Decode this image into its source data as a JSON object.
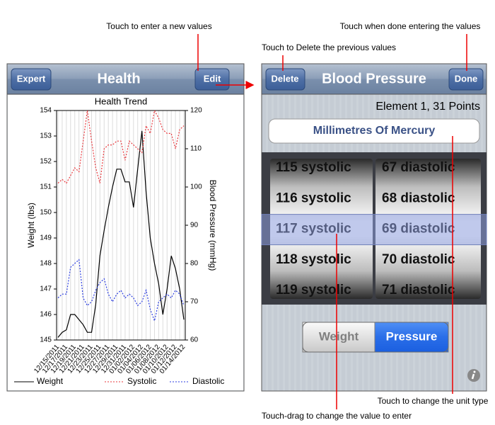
{
  "annotations": {
    "edit": "Touch to enter a new values",
    "done": "Touch when done entering the values",
    "delete": "Touch to Delete the previous values",
    "unit": "Touch to change the unit type",
    "drag": "Touch-drag to change the value to enter"
  },
  "left_screen": {
    "nav": {
      "left_button": "Expert",
      "title": "Health",
      "right_button": "Edit"
    }
  },
  "chart_data": {
    "type": "line",
    "title": "Health Trend",
    "y_label": "Weight (lbs)",
    "y2_label": "Blood Pressure (mmHg)",
    "categories": [
      "12/15/2011",
      null,
      "12/17/2011",
      null,
      "12/19/2011",
      null,
      "12/21/2011",
      null,
      "12/23/2011",
      null,
      "12/25/2011",
      null,
      "12/27/2011",
      null,
      "12/29/2011",
      null,
      "12/31/2011",
      null,
      "01/02/2012",
      null,
      "01/04/2012",
      null,
      "01/06/2012",
      null,
      "01/08/2012",
      null,
      "01/10/2012",
      null,
      "01/12/2012",
      null,
      "01/14/2012"
    ],
    "series": [
      {
        "name": "Weight",
        "color": "#000000",
        "dash": "solid",
        "values": [
          145.1,
          145.3,
          145.4,
          146.0,
          146.0,
          145.8,
          145.6,
          145.3,
          145.3,
          146.4,
          148.3,
          149.3,
          150.2,
          151.0,
          151.7,
          151.7,
          151.2,
          151.2,
          150.2,
          151.7,
          153.2,
          150.8,
          149.0,
          148.0,
          147.2,
          146.0,
          147.0,
          148.3,
          147.8,
          147.0,
          145.8
        ]
      },
      {
        "name": "Systolic",
        "color": "#e8383d",
        "dash": "dotted",
        "axis": "y2",
        "values": [
          101,
          102,
          101,
          103,
          105,
          104,
          112,
          120,
          112,
          105,
          101,
          110,
          111,
          111,
          112,
          112,
          107,
          112,
          111,
          110,
          109,
          116,
          114,
          120,
          118,
          115,
          114,
          114,
          110,
          115,
          116
        ]
      },
      {
        "name": "Diastolic",
        "color": "#2b3de0",
        "dash": "dotted",
        "axis": "y2",
        "values": [
          71,
          72,
          72,
          79,
          80,
          81,
          71,
          69,
          70,
          73,
          75,
          76,
          72,
          70,
          72,
          73,
          71,
          72,
          71,
          69,
          70,
          73,
          68,
          65,
          70,
          71,
          72,
          71,
          73,
          72,
          69
        ]
      }
    ],
    "ylim": [
      145,
      154
    ],
    "yticks": [
      145,
      146,
      147,
      148,
      149,
      150,
      151,
      152,
      153,
      154
    ],
    "y2lim": [
      60,
      120
    ],
    "y2ticks": [
      60,
      70,
      80,
      90,
      100,
      110,
      120
    ],
    "grid": true,
    "legend": "bottom"
  },
  "right_screen": {
    "nav": {
      "left_button": "Delete",
      "title": "Blood Pressure",
      "right_button": "Done"
    },
    "status": "Element 1, 31 Points",
    "unit": "Millimetres Of Mercury",
    "picker": {
      "left": [
        "115 systolic",
        "116 systolic",
        "117 systolic",
        "118 systolic",
        "119 systolic"
      ],
      "right": [
        "67 diastolic",
        "68 diastolic",
        "69 diastolic",
        "70 diastolic",
        "71 diastolic"
      ],
      "selected_row": 2
    },
    "segments": [
      "Weight",
      "Pressure"
    ],
    "selected_segment": 1
  }
}
